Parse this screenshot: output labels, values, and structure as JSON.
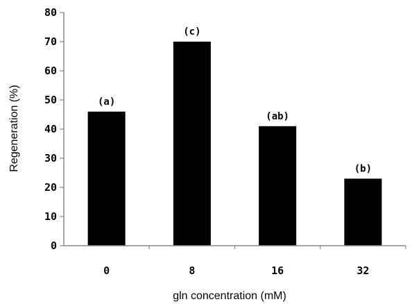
{
  "chart_data": {
    "type": "bar",
    "title": "",
    "xlabel": "gln concentration (mM)",
    "ylabel": "Regeneration (%)",
    "categories": [
      "0",
      "8",
      "16",
      "32"
    ],
    "values": [
      46,
      70,
      41,
      23
    ],
    "annotations": [
      "(a)",
      "(c)",
      "(ab)",
      "(b)"
    ],
    "ylim": [
      0,
      80
    ],
    "yticks": [
      0,
      10,
      20,
      30,
      40,
      50,
      60,
      70,
      80
    ],
    "grid": false,
    "bar_color": "#000000"
  }
}
